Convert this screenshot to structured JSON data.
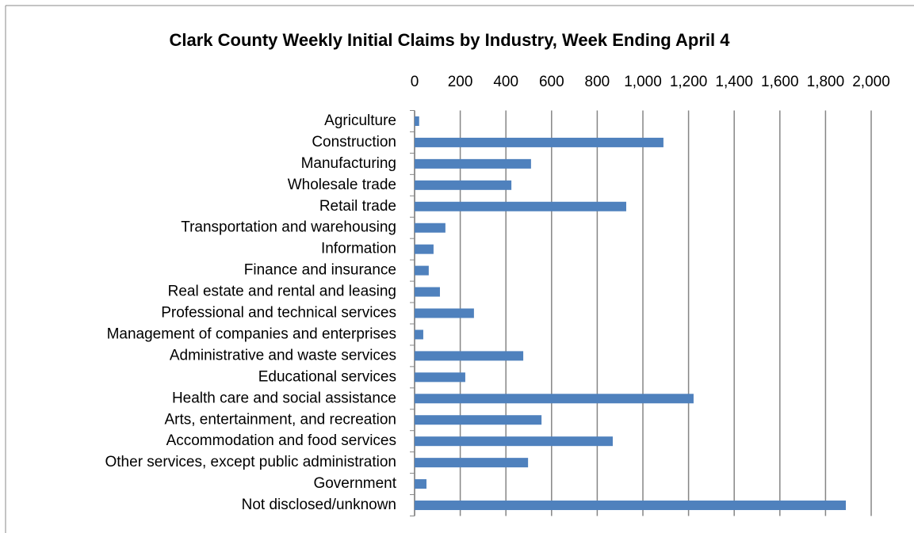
{
  "chart_data": {
    "type": "bar",
    "orientation": "horizontal",
    "title": "Clark County Weekly Initial Claims by Industry, Week Ending April 4",
    "categories": [
      "Agriculture",
      "Construction",
      "Manufacturing",
      "Wholesale trade",
      "Retail trade",
      "Transportation and warehousing",
      "Information",
      "Finance and insurance",
      "Real estate and rental and leasing",
      "Professional and technical services",
      "Management of companies and enterprises",
      "Administrative and waste services",
      "Educational services",
      "Health care and social assistance",
      "Arts, entertainment, and recreation",
      "Accommodation and food services",
      "Other services, except public administration",
      "Government",
      "Not disclosed/unknown"
    ],
    "values": [
      20,
      1090,
      510,
      424,
      927,
      135,
      83,
      62,
      111,
      260,
      38,
      476,
      222,
      1222,
      556,
      868,
      497,
      52,
      1889
    ],
    "color": "#4f81bd",
    "xlim": [
      0,
      2000
    ],
    "xticks": [
      0,
      200,
      400,
      600,
      800,
      {
        "value": 1000,
        "label": "1,000"
      },
      {
        "value": 1200,
        "label": "1,200"
      },
      {
        "value": 1400,
        "label": "1,400"
      },
      {
        "value": 1600,
        "label": "1,600"
      },
      {
        "value": 1800,
        "label": "1,800"
      },
      {
        "value": 2000,
        "label": "2,000"
      }
    ],
    "grid": true
  }
}
